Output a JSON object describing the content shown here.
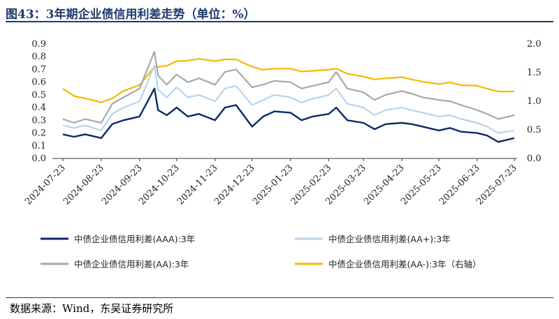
{
  "title": "图43：3年期企业债信用利差走势（单位：%）",
  "source": "数据来源：Wind，东吴证券研究所",
  "colors": {
    "AAA": "#0b2a66",
    "AA_plus": "#b9d4ea",
    "AA": "#a8a8a8",
    "AA_minus": "#f5b800"
  },
  "chart_data": {
    "type": "line",
    "x": [
      "2024-07-23",
      "2024-08-01",
      "2024-08-10",
      "2024-08-23",
      "2024-09-01",
      "2024-09-10",
      "2024-09-23",
      "2024-10-05",
      "2024-10-08",
      "2024-10-15",
      "2024-10-23",
      "2024-11-01",
      "2024-11-10",
      "2024-11-23",
      "2024-12-01",
      "2024-12-10",
      "2024-12-23",
      "2025-01-01",
      "2025-01-10",
      "2025-01-23",
      "2025-02-01",
      "2025-02-10",
      "2025-02-23",
      "2025-03-01",
      "2025-03-10",
      "2025-03-23",
      "2025-04-01",
      "2025-04-10",
      "2025-04-23",
      "2025-05-01",
      "2025-05-10",
      "2025-05-23",
      "2025-06-01",
      "2025-06-10",
      "2025-06-23",
      "2025-07-01",
      "2025-07-10",
      "2025-07-23"
    ],
    "x_tick_labels": [
      "2024-07-23",
      "2024-08-23",
      "2024-09-23",
      "2024-10-23",
      "2024-11-23",
      "2024-12-23",
      "2025-01-23",
      "2025-02-23",
      "2025-03-23",
      "2025-04-23",
      "2025-05-23",
      "2025-06-23",
      "2025-07-23"
    ],
    "y_left": {
      "ticks": [
        "0.0",
        "0.1",
        "0.2",
        "0.3",
        "0.4",
        "0.5",
        "0.6",
        "0.7",
        "0.8",
        "0.9"
      ],
      "range": [
        0,
        0.9
      ]
    },
    "y_right": {
      "ticks": [
        "0.0",
        "0.5",
        "1.0",
        "1.5",
        "2.0"
      ],
      "range": [
        0,
        2.0
      ]
    },
    "series": [
      {
        "name": "中债企业债信用利差(AAA):3年",
        "axis": "left",
        "color_key": "AAA",
        "values": [
          0.19,
          0.17,
          0.19,
          0.16,
          0.27,
          0.3,
          0.33,
          0.55,
          0.38,
          0.34,
          0.4,
          0.33,
          0.35,
          0.3,
          0.4,
          0.42,
          0.25,
          0.33,
          0.37,
          0.36,
          0.3,
          0.33,
          0.35,
          0.4,
          0.3,
          0.28,
          0.23,
          0.27,
          0.28,
          0.27,
          0.25,
          0.22,
          0.24,
          0.21,
          0.2,
          0.18,
          0.13,
          0.16
        ]
      },
      {
        "name": "中债企业债信用利差(AA+):3年",
        "axis": "left",
        "color_key": "AA_plus",
        "values": [
          0.26,
          0.24,
          0.26,
          0.22,
          0.35,
          0.4,
          0.45,
          0.73,
          0.54,
          0.48,
          0.56,
          0.48,
          0.5,
          0.45,
          0.55,
          0.57,
          0.42,
          0.46,
          0.5,
          0.48,
          0.44,
          0.47,
          0.5,
          0.55,
          0.43,
          0.4,
          0.34,
          0.38,
          0.4,
          0.38,
          0.36,
          0.33,
          0.34,
          0.31,
          0.28,
          0.25,
          0.2,
          0.22
        ]
      },
      {
        "name": "中债企业债信用利差(AA):3年",
        "axis": "left",
        "color_key": "AA",
        "values": [
          0.31,
          0.28,
          0.31,
          0.28,
          0.43,
          0.48,
          0.55,
          0.84,
          0.65,
          0.58,
          0.66,
          0.6,
          0.63,
          0.58,
          0.68,
          0.7,
          0.56,
          0.58,
          0.61,
          0.6,
          0.55,
          0.57,
          0.6,
          0.68,
          0.55,
          0.52,
          0.46,
          0.5,
          0.53,
          0.51,
          0.48,
          0.46,
          0.45,
          0.42,
          0.38,
          0.35,
          0.31,
          0.34
        ]
      },
      {
        "name": "中债企业债信用利差(AA-):3年（右轴）",
        "axis": "right",
        "color_key": "AA_minus",
        "values": [
          1.22,
          1.09,
          1.05,
          0.98,
          1.05,
          1.18,
          1.28,
          1.6,
          1.6,
          1.62,
          1.7,
          1.71,
          1.74,
          1.7,
          1.73,
          1.73,
          1.6,
          1.55,
          1.57,
          1.57,
          1.52,
          1.53,
          1.55,
          1.57,
          1.48,
          1.43,
          1.38,
          1.4,
          1.42,
          1.38,
          1.34,
          1.3,
          1.33,
          1.28,
          1.27,
          1.22,
          1.17,
          1.17
        ]
      }
    ],
    "legend_placement": "bottom",
    "grid": false
  }
}
